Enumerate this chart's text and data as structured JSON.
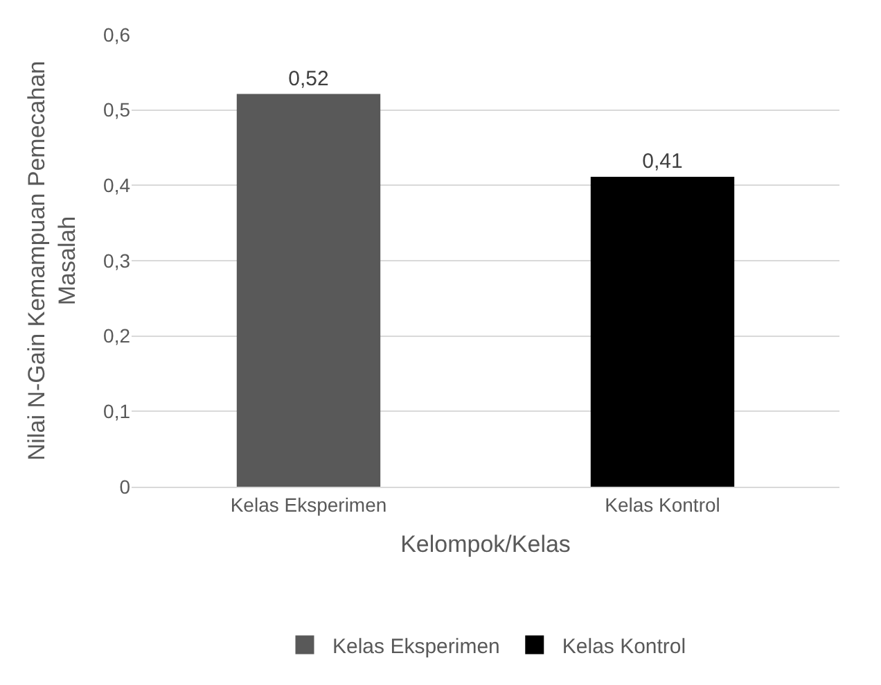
{
  "chart_data": {
    "type": "bar",
    "xlabel": "Kelompok/Kelas",
    "ylabel": "Nilai N-Gain Kemampuan Pemecahan Masalah",
    "categories": [
      "Kelas Eksperimen",
      "Kelas Kontrol"
    ],
    "series": [
      {
        "name": "Kelas Eksperimen",
        "color": "#595959",
        "values": [
          0.52,
          null
        ],
        "value_labels": [
          "0,52",
          null
        ]
      },
      {
        "name": "Kelas Kontrol",
        "color": "#000000",
        "values": [
          null,
          0.41
        ],
        "value_labels": [
          null,
          "0,41"
        ]
      }
    ],
    "ylim": [
      0,
      0.6
    ],
    "yticks": [
      0,
      {
        "value": 0.1,
        "label": "0,1"
      },
      {
        "value": 0.2,
        "label": "0,2"
      },
      {
        "value": 0.3,
        "label": "0,3"
      },
      {
        "value": 0.4,
        "label": "0,4"
      },
      {
        "value": 0.5,
        "label": "0,5"
      },
      {
        "value": 0.6,
        "label": "0,6"
      }
    ],
    "grid": "y",
    "legend": "bottom"
  }
}
